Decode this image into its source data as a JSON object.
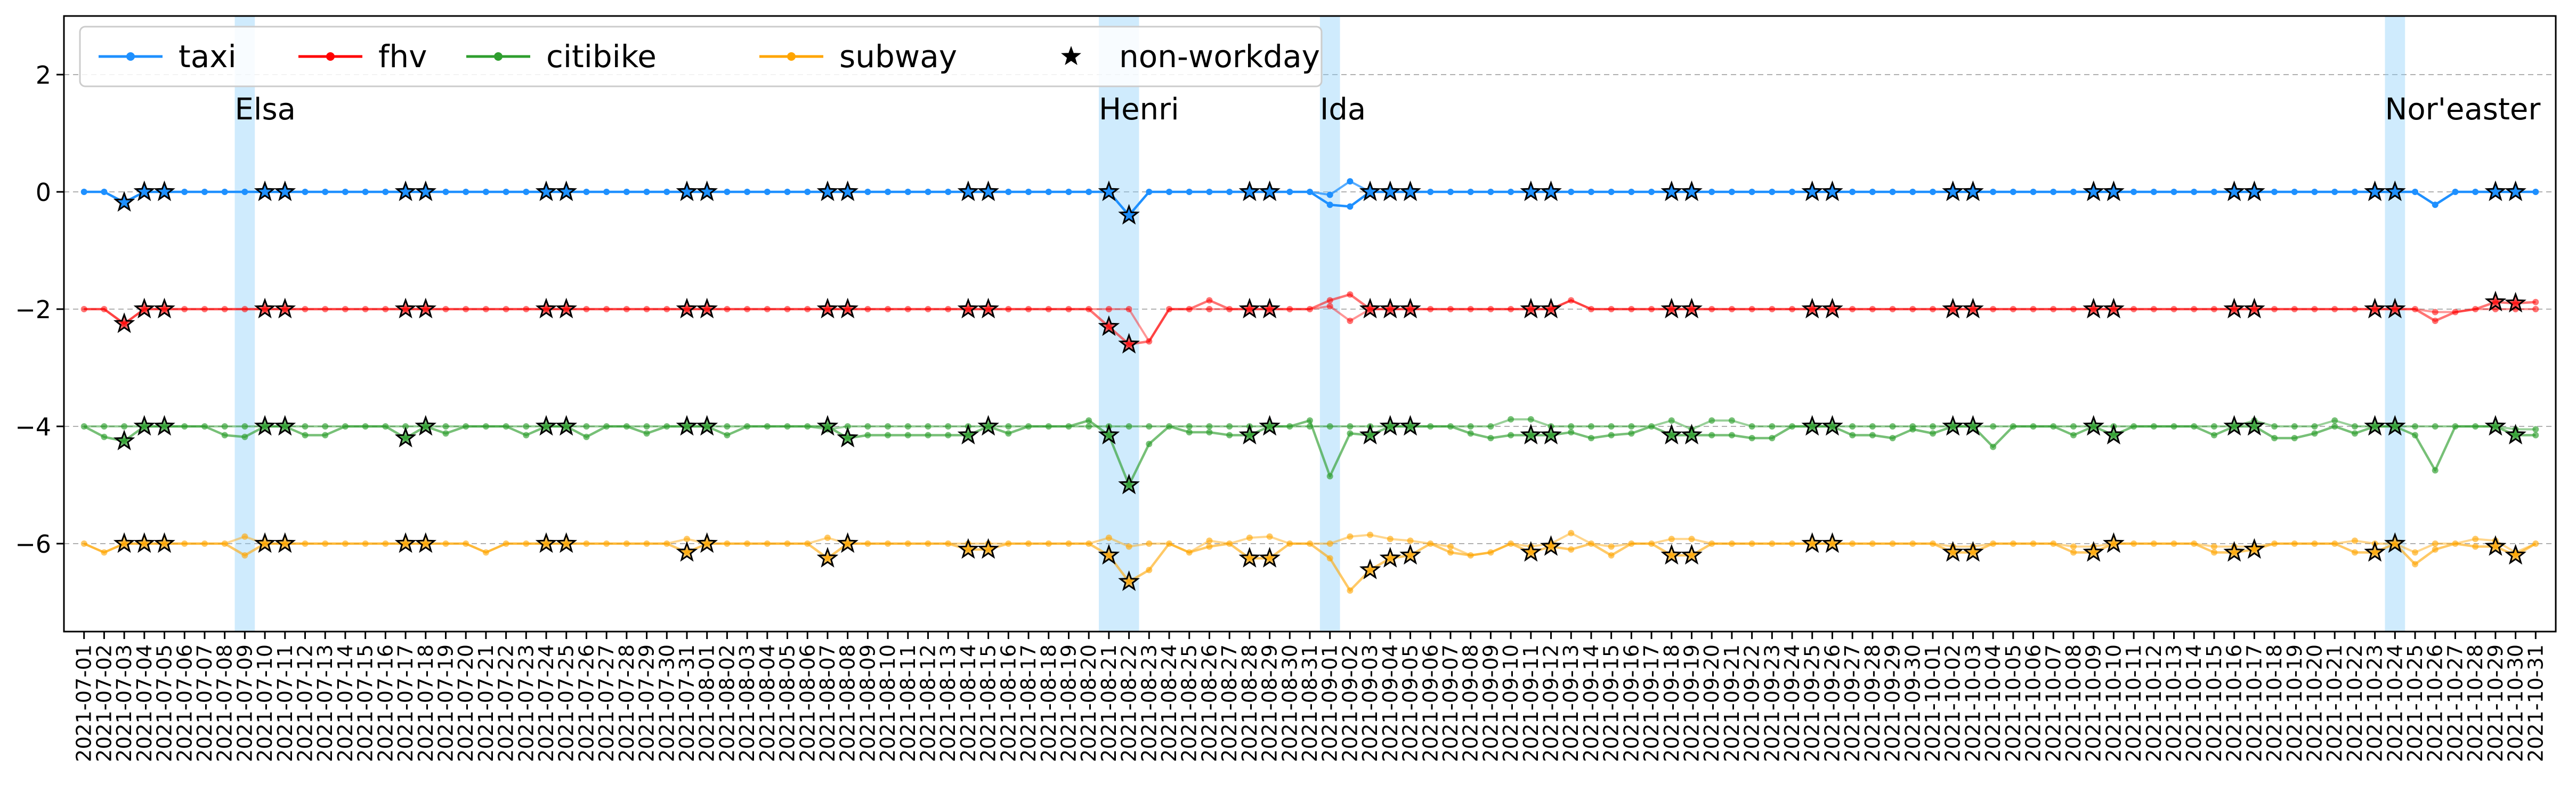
{
  "chart_data": {
    "type": "line",
    "title": "",
    "xlabel": "",
    "ylabel": "",
    "ylim": [
      -7.5,
      3.0
    ],
    "yticks": [
      -6,
      -4,
      -2,
      0,
      2
    ],
    "ytick_labels": [
      "−6",
      "−4",
      "−2",
      "0",
      "2"
    ],
    "grid": "horizontal dashed",
    "x": [
      "2021-07-01",
      "2021-07-02",
      "2021-07-03",
      "2021-07-04",
      "2021-07-05",
      "2021-07-06",
      "2021-07-07",
      "2021-07-08",
      "2021-07-09",
      "2021-07-10",
      "2021-07-11",
      "2021-07-12",
      "2021-07-13",
      "2021-07-14",
      "2021-07-15",
      "2021-07-16",
      "2021-07-17",
      "2021-07-18",
      "2021-07-19",
      "2021-07-20",
      "2021-07-21",
      "2021-07-22",
      "2021-07-23",
      "2021-07-24",
      "2021-07-25",
      "2021-07-26",
      "2021-07-27",
      "2021-07-28",
      "2021-07-29",
      "2021-07-30",
      "2021-07-31",
      "2021-08-01",
      "2021-08-02",
      "2021-08-03",
      "2021-08-04",
      "2021-08-05",
      "2021-08-06",
      "2021-08-07",
      "2021-08-08",
      "2021-08-09",
      "2021-08-10",
      "2021-08-11",
      "2021-08-12",
      "2021-08-13",
      "2021-08-14",
      "2021-08-15",
      "2021-08-16",
      "2021-08-17",
      "2021-08-18",
      "2021-08-19",
      "2021-08-20",
      "2021-08-21",
      "2021-08-22",
      "2021-08-23",
      "2021-08-24",
      "2021-08-25",
      "2021-08-26",
      "2021-08-27",
      "2021-08-28",
      "2021-08-29",
      "2021-08-30",
      "2021-08-31",
      "2021-09-01",
      "2021-09-02",
      "2021-09-03",
      "2021-09-04",
      "2021-09-05",
      "2021-09-06",
      "2021-09-07",
      "2021-09-08",
      "2021-09-09",
      "2021-09-10",
      "2021-09-11",
      "2021-09-12",
      "2021-09-13",
      "2021-09-14",
      "2021-09-15",
      "2021-09-16",
      "2021-09-17",
      "2021-09-18",
      "2021-09-19",
      "2021-09-20",
      "2021-09-21",
      "2021-09-22",
      "2021-09-23",
      "2021-09-24",
      "2021-09-25",
      "2021-09-26",
      "2021-09-27",
      "2021-09-28",
      "2021-09-29",
      "2021-09-30",
      "2021-10-01",
      "2021-10-02",
      "2021-10-03",
      "2021-10-04",
      "2021-10-05",
      "2021-10-06",
      "2021-10-07",
      "2021-10-08",
      "2021-10-09",
      "2021-10-10",
      "2021-10-11",
      "2021-10-12",
      "2021-10-13",
      "2021-10-14",
      "2021-10-15",
      "2021-10-16",
      "2021-10-17",
      "2021-10-18",
      "2021-10-19",
      "2021-10-20",
      "2021-10-21",
      "2021-10-22",
      "2021-10-23",
      "2021-10-24",
      "2021-10-25",
      "2021-10-26",
      "2021-10-27",
      "2021-10-28",
      "2021-10-29",
      "2021-10-30",
      "2021-10-31"
    ],
    "series": [
      {
        "name": "taxi",
        "color": "#1E90FF",
        "alpha": 1.0,
        "values": [
          0,
          0,
          -0.18,
          0,
          0,
          0,
          0,
          0,
          0,
          0,
          0,
          0,
          0,
          0,
          0,
          0,
          0,
          0,
          0,
          0,
          0,
          0,
          0,
          0,
          0,
          0,
          0,
          0,
          0,
          0,
          0,
          0,
          0,
          0,
          0,
          0,
          0,
          0,
          0,
          0,
          0,
          0,
          0,
          0,
          0,
          0,
          0,
          0,
          0,
          0,
          0,
          0,
          -0.4,
          0,
          0,
          0,
          0,
          0,
          0,
          0,
          0,
          0,
          -0.22,
          -0.25,
          0,
          0,
          0,
          0,
          0,
          0,
          0,
          0,
          0,
          0,
          0,
          0,
          0,
          0,
          0,
          0,
          0,
          0,
          0,
          0,
          0,
          0,
          0,
          0,
          0,
          0,
          0,
          0,
          0,
          0,
          0,
          0,
          0,
          0,
          0,
          0,
          0,
          0,
          0,
          0,
          0,
          0,
          0,
          0,
          0,
          0,
          0,
          0,
          0,
          0,
          0,
          0,
          0,
          -0.22,
          0,
          0,
          0,
          0,
          0
        ],
        "values_alt": [
          null,
          null,
          null,
          null,
          null,
          null,
          null,
          null,
          null,
          null,
          null,
          null,
          null,
          null,
          null,
          null,
          null,
          null,
          null,
          null,
          null,
          null,
          null,
          null,
          null,
          null,
          null,
          null,
          null,
          null,
          null,
          null,
          null,
          null,
          null,
          null,
          null,
          null,
          null,
          null,
          null,
          null,
          null,
          null,
          null,
          null,
          null,
          null,
          null,
          null,
          null,
          null,
          null,
          null,
          null,
          null,
          null,
          null,
          null,
          null,
          null,
          null,
          -0.05,
          0.18,
          null,
          null,
          null,
          null,
          null,
          null,
          null,
          null,
          null,
          null,
          null,
          null,
          null,
          null,
          null,
          null,
          null,
          null,
          null,
          null,
          null,
          null,
          null,
          null,
          null,
          null,
          null,
          null,
          null,
          null,
          null,
          null,
          null,
          null,
          null,
          null,
          null,
          null,
          null,
          null,
          null,
          null,
          null,
          null,
          null,
          null,
          null,
          null,
          null,
          null,
          null,
          null,
          null,
          null,
          null,
          null,
          null,
          null,
          null
        ]
      },
      {
        "name": "fhv",
        "color": "#FF0000",
        "alpha": 0.55,
        "values": [
          -2,
          -2,
          -2.25,
          -2,
          -2,
          -2,
          -2,
          -2,
          -2,
          -2,
          -2,
          -2,
          -2,
          -2,
          -2,
          -2,
          -2,
          -2,
          -2,
          -2,
          -2,
          -2,
          -2,
          -2,
          -2,
          -2,
          -2,
          -2,
          -2,
          -2,
          -2,
          -2,
          -2,
          -2,
          -2,
          -2,
          -2,
          -2,
          -2,
          -2,
          -2,
          -2,
          -2,
          -2,
          -2,
          -2,
          -2,
          -2,
          -2,
          -2,
          -2,
          -2.3,
          -2.6,
          -2.55,
          -2,
          -2,
          -1.85,
          -2,
          -2,
          -2,
          -2,
          -2,
          -1.85,
          -1.75,
          -2,
          -2,
          -2,
          -2,
          -2,
          -2,
          -2,
          -2,
          -2,
          -2,
          -1.85,
          -2,
          -2,
          -2,
          -2,
          -2,
          -2,
          -2,
          -2,
          -2,
          -2,
          -2,
          -2,
          -2,
          -2,
          -2,
          -2,
          -2,
          -2,
          -2,
          -2,
          -2,
          -2,
          -2,
          -2,
          -2,
          -2,
          -2,
          -2,
          -2,
          -2,
          -2,
          -2,
          -2,
          -2,
          -2,
          -2,
          -2,
          -2,
          -2,
          -2,
          -2,
          -2,
          -2.2,
          -2.05,
          -2,
          -1.88,
          -1.9,
          -1.88
        ],
        "values_alt": [
          null,
          null,
          null,
          null,
          null,
          null,
          null,
          null,
          null,
          null,
          null,
          null,
          null,
          null,
          null,
          null,
          null,
          null,
          null,
          null,
          null,
          null,
          null,
          null,
          null,
          null,
          null,
          null,
          null,
          null,
          null,
          null,
          null,
          null,
          null,
          null,
          null,
          null,
          null,
          null,
          null,
          null,
          null,
          null,
          null,
          null,
          null,
          null,
          null,
          null,
          null,
          -2,
          -2,
          null,
          null,
          null,
          -2,
          null,
          null,
          null,
          null,
          null,
          -1.95,
          -2.2,
          null,
          null,
          null,
          null,
          null,
          null,
          null,
          null,
          null,
          null,
          null,
          null,
          null,
          null,
          null,
          null,
          null,
          null,
          null,
          null,
          null,
          null,
          null,
          null,
          null,
          null,
          null,
          null,
          null,
          null,
          null,
          null,
          null,
          null,
          null,
          null,
          null,
          null,
          null,
          null,
          null,
          null,
          null,
          null,
          null,
          null,
          null,
          null,
          null,
          null,
          null,
          null,
          null,
          -2.05,
          null,
          null,
          -2,
          -2,
          -2
        ]
      },
      {
        "name": "citibike",
        "color": "#2E9E2E",
        "alpha": 0.65,
        "values": [
          -4,
          -4.18,
          -4.25,
          -4,
          -4,
          -4,
          -4,
          -4.15,
          -4.18,
          -4,
          -4,
          -4.15,
          -4.15,
          -4,
          -4,
          -4,
          -4.2,
          -4,
          -4.12,
          -4,
          -4,
          -4,
          -4.15,
          -4,
          -4,
          -4.18,
          -4,
          -4,
          -4.12,
          -4,
          -4,
          -4,
          -4.15,
          -4,
          -4,
          -4,
          -4,
          -4,
          -4.2,
          -4.15,
          -4.15,
          -4.15,
          -4.15,
          -4.15,
          -4.15,
          -4,
          -4.12,
          -4,
          -4,
          -4,
          -3.9,
          -4.15,
          -5.0,
          -4.3,
          -4,
          -4.1,
          -4.1,
          -4.15,
          -4.15,
          -4,
          -4,
          -3.9,
          -4.85,
          -4.12,
          -4.15,
          -4,
          -4,
          -4,
          -4,
          -4.12,
          -4.2,
          -4.15,
          -4.15,
          -4.15,
          -4.1,
          -4.2,
          -4.15,
          -4.12,
          -4,
          -4.15,
          -4.15,
          -4.15,
          -4.15,
          -4.2,
          -4.2,
          -4,
          -4,
          -4,
          -4.15,
          -4.15,
          -4.2,
          -4.05,
          -4.12,
          -4,
          -4,
          -4.35,
          -4,
          -4,
          -4,
          -4.15,
          -4,
          -4.15,
          -4,
          -4,
          -4,
          -4,
          -4.15,
          -4,
          -4,
          -4.2,
          -4.2,
          -4.12,
          -4,
          -4.12,
          -4,
          -4,
          -4.15,
          -4.75,
          -4,
          -4,
          -4,
          -4.15,
          -4.15
        ],
        "values_alt": [
          null,
          -4,
          -4,
          null,
          null,
          null,
          null,
          -4,
          -4,
          null,
          null,
          -4,
          -4,
          null,
          null,
          null,
          -4,
          null,
          -4,
          null,
          null,
          null,
          -4,
          null,
          null,
          -4,
          null,
          null,
          -4,
          null,
          null,
          null,
          -4,
          null,
          null,
          null,
          null,
          -4.05,
          -4,
          -4,
          -4,
          -4,
          -4,
          -4,
          -4,
          null,
          -4,
          null,
          null,
          null,
          -4,
          -4,
          -4,
          -4,
          null,
          -4,
          -4,
          -4,
          -4,
          null,
          null,
          -4,
          -4,
          -4,
          -4,
          null,
          null,
          null,
          null,
          -4,
          -4,
          -3.88,
          -3.88,
          -4,
          -4,
          -4,
          -4,
          -4,
          null,
          -3.9,
          -4.05,
          -3.9,
          -3.9,
          -4,
          -4,
          null,
          null,
          null,
          -4,
          -4,
          -4,
          -4,
          -4,
          null,
          null,
          -4,
          null,
          null,
          null,
          -4,
          null,
          -4,
          null,
          null,
          null,
          null,
          -4,
          null,
          -3.9,
          -4,
          -4,
          -4,
          -3.9,
          -4,
          null,
          null,
          -4,
          -4,
          null,
          null,
          null,
          -4.05,
          -4.05
        ]
      },
      {
        "name": "subway",
        "color": "#FFA500",
        "alpha": 0.6,
        "values": [
          -6,
          -6.15,
          -6,
          -6,
          -6,
          -6,
          -6,
          -6,
          -6.2,
          -6,
          -6,
          -6,
          -6,
          -6,
          -6,
          -6,
          -6,
          -6,
          -6,
          -6,
          -6.15,
          -6,
          -6,
          -6,
          -6,
          -6,
          -6,
          -6,
          -6,
          -6,
          -6.15,
          -6,
          -6,
          -6,
          -6,
          -6,
          -6,
          -6.25,
          -6,
          -6,
          -6,
          -6,
          -6,
          -6,
          -6.1,
          -6.1,
          -6,
          -6,
          -6,
          -6,
          -6,
          -6.2,
          -6.65,
          -6.45,
          -6,
          -6.15,
          -6.05,
          -6,
          -6.25,
          -6.25,
          -6,
          -6,
          -6.25,
          -6.8,
          -6.45,
          -6.25,
          -6.2,
          -6,
          -6.15,
          -6.2,
          -6.15,
          -6,
          -6.15,
          -6.05,
          -6.1,
          -6,
          -6.2,
          -6,
          -6,
          -6.2,
          -6.2,
          -6,
          -6,
          -6,
          -6,
          -6,
          -6,
          -6,
          -6,
          -6,
          -6,
          -6,
          -6,
          -6.15,
          -6.15,
          -6,
          -6,
          -6,
          -6,
          -6.15,
          -6.15,
          -6,
          -6,
          -6,
          -6,
          -6,
          -6.15,
          -6.15,
          -6.1,
          -6,
          -6,
          -6,
          -6,
          -6.15,
          -6.15,
          -6,
          -6.35,
          -6.1,
          -6,
          -6.05,
          -6.05,
          -6.2,
          -6
        ],
        "values_alt": [
          null,
          null,
          null,
          null,
          null,
          null,
          null,
          null,
          -5.88,
          null,
          null,
          null,
          null,
          null,
          null,
          null,
          null,
          null,
          null,
          null,
          null,
          null,
          null,
          null,
          null,
          null,
          null,
          null,
          null,
          null,
          -5.92,
          null,
          null,
          null,
          null,
          null,
          null,
          -5.9,
          null,
          null,
          null,
          null,
          null,
          null,
          -6,
          -6,
          null,
          null,
          null,
          null,
          null,
          -5.9,
          -6.05,
          -6,
          null,
          null,
          -5.95,
          null,
          -5.9,
          -5.88,
          null,
          null,
          -6,
          -5.88,
          -5.85,
          -5.92,
          -5.95,
          null,
          -6.05,
          null,
          null,
          null,
          -6.05,
          -6,
          -5.82,
          null,
          -6.05,
          null,
          null,
          -5.92,
          -5.92,
          null,
          null,
          null,
          null,
          null,
          null,
          null,
          null,
          null,
          null,
          null,
          null,
          -6.05,
          -6.05,
          null,
          null,
          null,
          null,
          -6.05,
          -6.05,
          null,
          null,
          null,
          null,
          null,
          -6.05,
          -6.05,
          -6.05,
          null,
          null,
          null,
          null,
          -5.95,
          -6,
          null,
          -6.15,
          -6,
          null,
          -5.92,
          -5.95,
          -6.15,
          null
        ]
      }
    ],
    "non_workday_indices": [
      2,
      3,
      4,
      9,
      10,
      16,
      17,
      23,
      24,
      30,
      31,
      37,
      38,
      44,
      45,
      51,
      52,
      58,
      59,
      64,
      65,
      66,
      72,
      73,
      79,
      80,
      86,
      87,
      93,
      94,
      100,
      101,
      107,
      108,
      114,
      115,
      120,
      121
    ],
    "events": [
      {
        "label": "Elsa",
        "start": 7.5,
        "end": 8.5
      },
      {
        "label": "Henri",
        "start": 50.5,
        "end": 52.5
      },
      {
        "label": "Ida",
        "start": 61.5,
        "end": 62.5
      },
      {
        "label": "Nor'easter",
        "start": 114.5,
        "end": 115.5
      }
    ],
    "legend": {
      "placement": "top-left",
      "entries": [
        {
          "label": "taxi",
          "color": "#1E90FF",
          "marker": "dot"
        },
        {
          "label": "fhv",
          "color": "#FF0000",
          "marker": "dot"
        },
        {
          "label": "citibike",
          "color": "#2E9E2E",
          "marker": "dot"
        },
        {
          "label": "subway",
          "color": "#FFA500",
          "marker": "dot"
        },
        {
          "label": "non-workday",
          "color": "#000000",
          "marker": "star"
        }
      ]
    },
    "dashed_reference_line": 2
  }
}
